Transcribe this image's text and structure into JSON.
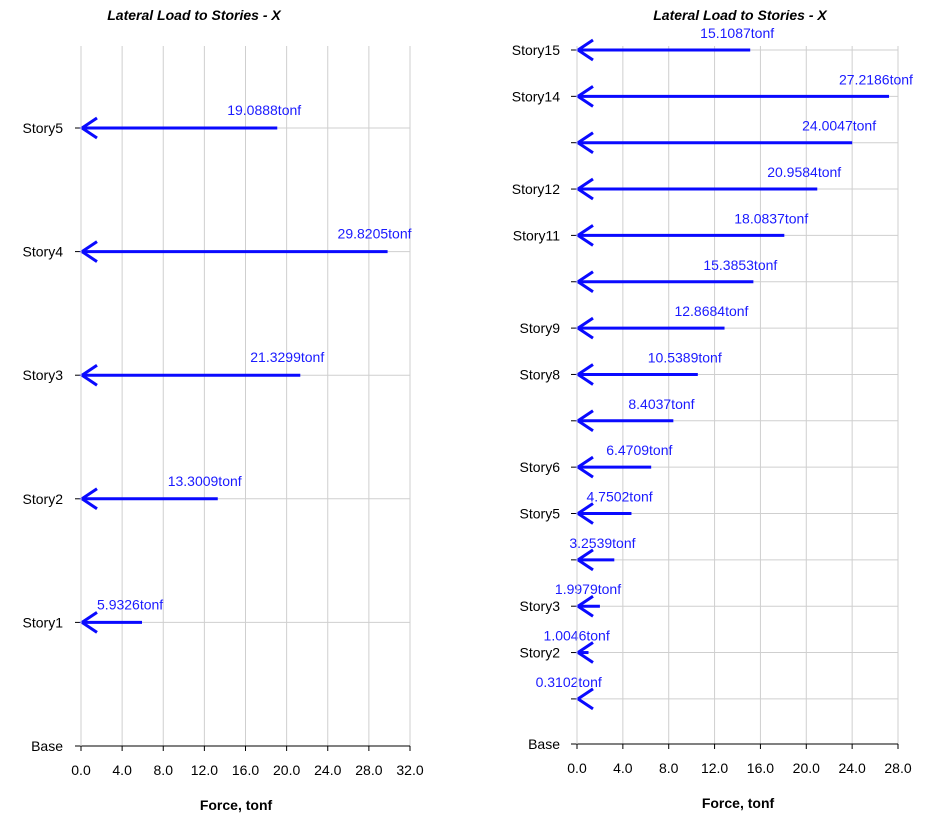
{
  "colors": {
    "bar": "#0a0aff",
    "label": "#1a1aff",
    "grid": "#cfcfcf"
  },
  "chart_data": [
    {
      "type": "bar",
      "orientation": "horizontal",
      "title": "Lateral Load to Stories - X",
      "xlabel": "Force, tonf",
      "ylabel": "",
      "xlim": [
        0,
        32
      ],
      "xticks": [
        "0.0",
        "4.0",
        "8.0",
        "12.0",
        "16.0",
        "20.0",
        "24.0",
        "28.0",
        "32.0"
      ],
      "categories": [
        "Story5",
        "Story4",
        "Story3",
        "Story2",
        "Story1"
      ],
      "base_label": "Base",
      "values": [
        19.0888,
        29.8205,
        21.3299,
        13.3009,
        5.9326
      ],
      "data_labels": [
        "19.0888tonf",
        "29.8205tonf",
        "21.3299tonf",
        "13.3009tonf",
        "5.9326tonf"
      ],
      "grid": true
    },
    {
      "type": "bar",
      "orientation": "horizontal",
      "title": "Lateral Load to Stories - X",
      "xlabel": "Force, tonf",
      "ylabel": "",
      "xlim": [
        0,
        28
      ],
      "xticks": [
        "0.0",
        "4.0",
        "8.0",
        "12.0",
        "16.0",
        "20.0",
        "24.0",
        "28.0"
      ],
      "categories": [
        "Story15",
        "Story14",
        "",
        "Story12",
        "Story11",
        "",
        "Story9",
        "Story8",
        "",
        "Story6",
        "Story5",
        "",
        "Story3",
        "Story2",
        ""
      ],
      "base_label": "Base",
      "values": [
        15.1087,
        27.2186,
        24.0047,
        20.9584,
        18.0837,
        15.3853,
        12.8684,
        10.5389,
        8.4037,
        6.4709,
        4.7502,
        3.2539,
        1.9979,
        1.0046,
        0.3102
      ],
      "data_labels": [
        "15.1087tonf",
        "27.2186tonf",
        "24.0047tonf",
        "20.9584tonf",
        "18.0837tonf",
        "15.3853tonf",
        "12.8684tonf",
        "10.5389tonf",
        "8.4037tonf",
        "6.4709tonf",
        "4.7502tonf",
        "3.2539tonf",
        "1.9979tonf",
        "1.0046tonf",
        "0.3102tonf"
      ],
      "grid": true
    }
  ]
}
